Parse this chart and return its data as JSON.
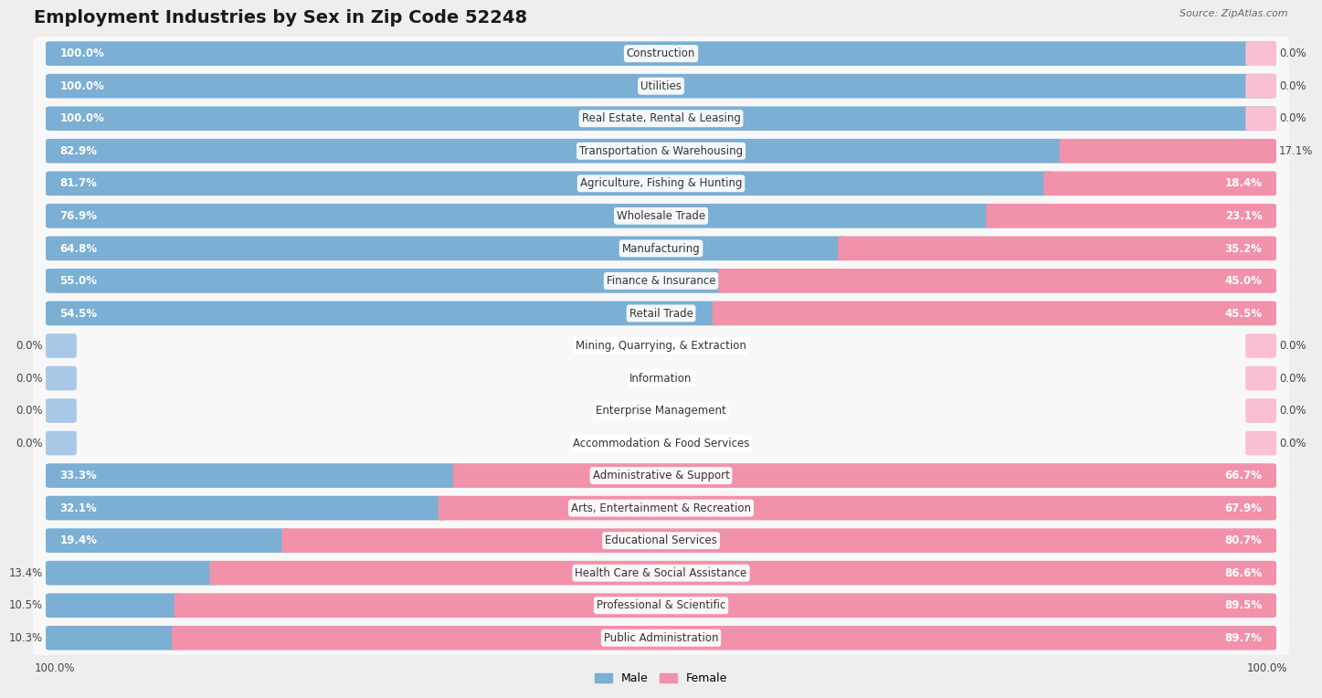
{
  "title": "Employment Industries by Sex in Zip Code 52248",
  "source": "Source: ZipAtlas.com",
  "categories": [
    "Construction",
    "Utilities",
    "Real Estate, Rental & Leasing",
    "Transportation & Warehousing",
    "Agriculture, Fishing & Hunting",
    "Wholesale Trade",
    "Manufacturing",
    "Finance & Insurance",
    "Retail Trade",
    "Mining, Quarrying, & Extraction",
    "Information",
    "Enterprise Management",
    "Accommodation & Food Services",
    "Administrative & Support",
    "Arts, Entertainment & Recreation",
    "Educational Services",
    "Health Care & Social Assistance",
    "Professional & Scientific",
    "Public Administration"
  ],
  "male": [
    100.0,
    100.0,
    100.0,
    82.9,
    81.7,
    76.9,
    64.8,
    55.0,
    54.5,
    0.0,
    0.0,
    0.0,
    0.0,
    33.3,
    32.1,
    19.4,
    13.4,
    10.5,
    10.3
  ],
  "female": [
    0.0,
    0.0,
    0.0,
    17.1,
    18.4,
    23.1,
    35.2,
    45.0,
    45.5,
    0.0,
    0.0,
    0.0,
    0.0,
    66.7,
    67.9,
    80.7,
    86.6,
    89.5,
    89.7
  ],
  "male_color": "#7bafd4",
  "female_color": "#f192aa",
  "background_color": "#eeeeee",
  "row_bg_color": "#f8f8f8",
  "bar_stub_color_male": "#a8c8e8",
  "bar_stub_color_female": "#f8c0d0",
  "title_fontsize": 14,
  "label_fontsize": 8.5,
  "category_fontsize": 8.5
}
